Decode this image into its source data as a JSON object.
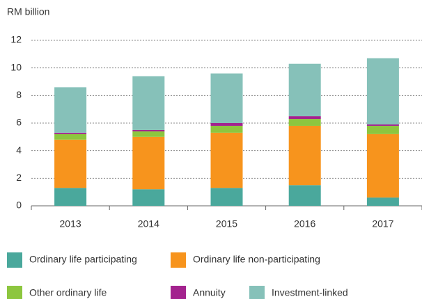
{
  "chart_data": {
    "type": "stacked_bar",
    "y_label": "RM billion",
    "categories": [
      "2013",
      "2014",
      "2015",
      "2016",
      "2017"
    ],
    "series": [
      {
        "name": "Ordinary life participating",
        "color": "#4aa89c",
        "values": [
          1.3,
          1.2,
          1.3,
          1.5,
          0.6
        ]
      },
      {
        "name": "Ordinary life non-participating",
        "color": "#f7941d",
        "values": [
          3.5,
          3.8,
          4.0,
          4.3,
          4.6
        ]
      },
      {
        "name": "Other ordinary life",
        "color": "#8dc63f",
        "values": [
          0.4,
          0.4,
          0.5,
          0.5,
          0.6
        ]
      },
      {
        "name": "Annuity",
        "color": "#a3238e",
        "values": [
          0.1,
          0.1,
          0.2,
          0.2,
          0.1
        ]
      },
      {
        "name": "Investment-linked",
        "color": "#86c1b9",
        "values": [
          3.3,
          3.9,
          3.6,
          3.8,
          4.8
        ]
      }
    ],
    "ylim": [
      0,
      12
    ],
    "yticks": [
      0,
      2,
      4,
      6,
      8,
      10,
      12
    ],
    "grid": true
  }
}
